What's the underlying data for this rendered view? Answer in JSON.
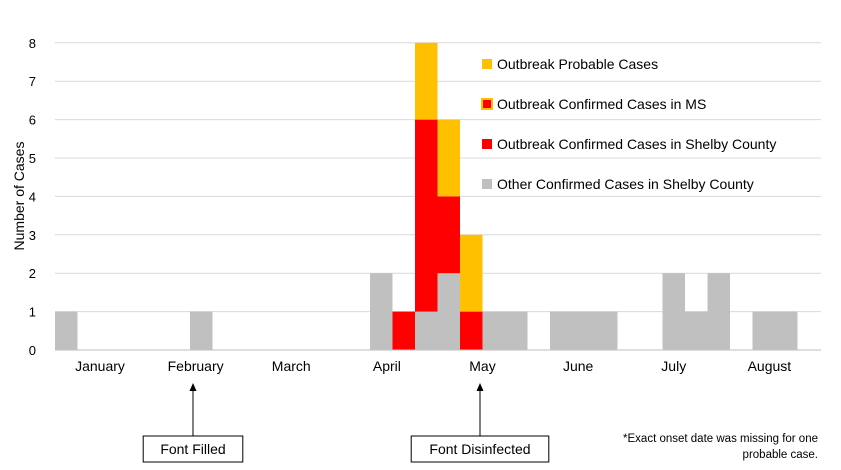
{
  "chart_data": {
    "type": "bar",
    "stacked": true,
    "title": "",
    "xlabel": "",
    "ylabel": "Number of Cases",
    "ylim": [
      0,
      8
    ],
    "yticks": [
      0,
      1,
      2,
      3,
      4,
      5,
      6,
      7,
      8
    ],
    "grid": true,
    "bin": "week",
    "months": [
      "January",
      "February",
      "March",
      "April",
      "May",
      "June",
      "July",
      "August"
    ],
    "series": [
      {
        "name": "Other Confirmed Cases in Shelby County",
        "color": "#c0c0c0",
        "values": [
          1,
          0,
          0,
          0,
          0,
          0,
          1,
          0,
          0,
          0,
          0,
          0,
          0,
          0,
          2,
          0,
          1,
          2,
          0,
          1,
          1,
          0,
          1,
          1,
          1,
          0,
          0,
          2,
          1,
          2,
          0,
          1,
          1
        ]
      },
      {
        "name": "Outbreak Confirmed Cases in Shelby County",
        "color": "#ff0000",
        "values": [
          0,
          0,
          0,
          0,
          0,
          0,
          0,
          0,
          0,
          0,
          0,
          0,
          0,
          0,
          0,
          1,
          5,
          2,
          1,
          0,
          0,
          0,
          0,
          0,
          0,
          0,
          0,
          0,
          0,
          0,
          0,
          0,
          0
        ]
      },
      {
        "name": "Outbreak Confirmed Cases in MS",
        "color": "#ff0000",
        "border": "#ffc000",
        "values": [
          0,
          0,
          0,
          0,
          0,
          0,
          0,
          0,
          0,
          0,
          0,
          0,
          0,
          0,
          0,
          0,
          0,
          0,
          0,
          0,
          0,
          0,
          0,
          0,
          0,
          0,
          0,
          0,
          0,
          0,
          0,
          0,
          0
        ]
      },
      {
        "name": "Outbreak Probable Cases",
        "color": "#ffc000",
        "values": [
          0,
          0,
          0,
          0,
          0,
          0,
          0,
          0,
          0,
          0,
          0,
          0,
          0,
          0,
          0,
          0,
          2,
          2,
          2,
          0,
          0,
          0,
          0,
          0,
          0,
          0,
          0,
          0,
          0,
          0,
          0,
          0,
          0
        ]
      }
    ],
    "legend_order": [
      "Outbreak Probable Cases",
      "Outbreak Confirmed Cases in MS",
      "Outbreak Confirmed Cases in Shelby County",
      "Other Confirmed Cases in Shelby County"
    ],
    "legend_position": "top-right",
    "annotations": [
      {
        "label": "Font Filled",
        "month": "February"
      },
      {
        "label": "Font Disinfected",
        "month": "May"
      }
    ],
    "footnote_lines": [
      "*Exact onset date was missing for one",
      "probable case."
    ]
  }
}
